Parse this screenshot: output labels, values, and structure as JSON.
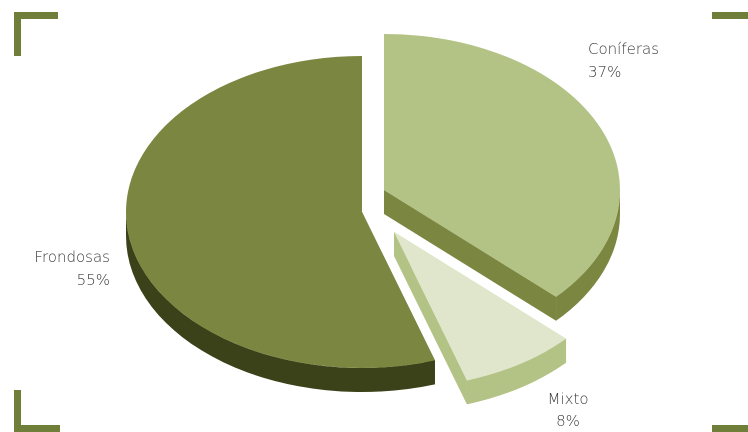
{
  "colors": {
    "frame": "#6f7f3a",
    "frondosas_top": "#7b8740",
    "frondosas_side": "#3b4219",
    "coniferas_top": "#b3c285",
    "coniferas_side": "#7b8740",
    "mixto_top": "#dfe6cb",
    "mixto_side": "#b3c285"
  },
  "chart_data": {
    "type": "pie",
    "title": "",
    "slices": [
      {
        "label": "Coníferas",
        "pct_label": "37%",
        "value": 37
      },
      {
        "label": "Mixto",
        "pct_label": "8%",
        "value": 8
      },
      {
        "label": "Frondosas",
        "pct_label": "55%",
        "value": 55
      }
    ],
    "legend": "none",
    "style": "3d-exploded"
  }
}
